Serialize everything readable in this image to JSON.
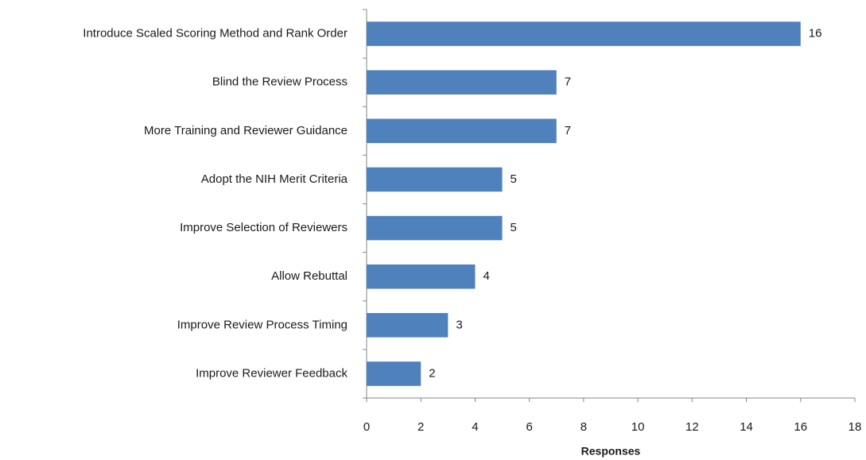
{
  "chart_data": {
    "type": "bar",
    "orientation": "horizontal",
    "x_label": "Responses",
    "categories": [
      "Introduce Scaled Scoring Method and Rank Order",
      "Blind the Review Process",
      "More Training and Reviewer Guidance",
      "Adopt the NIH Merit Criteria",
      "Improve Selection of Reviewers",
      "Allow Rebuttal",
      "Improve Review Process Timing",
      "Improve Reviewer Feedback"
    ],
    "values": [
      16,
      7,
      7,
      5,
      5,
      4,
      3,
      2
    ],
    "color": "#4f81bd",
    "xlim": [
      0,
      18
    ],
    "xticks": [
      0,
      2,
      4,
      6,
      8,
      10,
      12,
      14,
      16,
      18
    ],
    "grid": false
  }
}
